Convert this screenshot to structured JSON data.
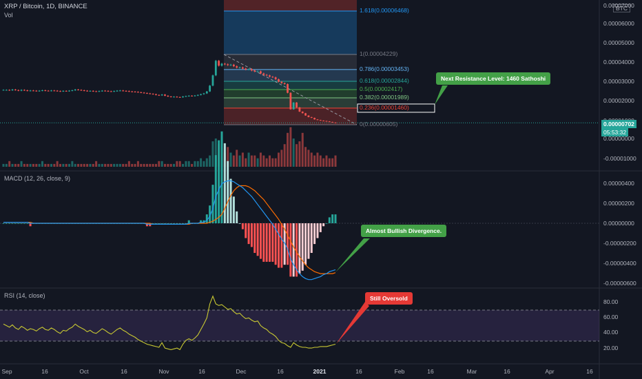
{
  "header": {
    "title": "XRP / Bitcoin, 1D, BINANCE",
    "vol": "Vol"
  },
  "price_axis": {
    "currency": "BTC",
    "labels": [
      "0.00007000",
      "0.00006000",
      "0.00005000",
      "0.00004000",
      "0.00003000",
      "0.00002000",
      "0.00001000",
      "0.00000000",
      "-0.00001000"
    ],
    "last_price": "0.00000702",
    "countdown": "05:53:32"
  },
  "fib": {
    "levels": [
      {
        "label": "1.618(0.00006468)",
        "color": "#2196f3"
      },
      {
        "label": "1(0.00004229)",
        "color": "#787b86"
      },
      {
        "label": "0.786(0.00003453)",
        "color": "#64b5f6"
      },
      {
        "label": "0.618(0.00002844)",
        "color": "#26a69a"
      },
      {
        "label": "0.5(0.00002417)",
        "color": "#4caf50"
      },
      {
        "label": "0.382(0.00001989)",
        "color": "#81c784"
      },
      {
        "label": "0.236(0.00001460)",
        "color": "#f44336"
      },
      {
        "label": "0(0.00000605)",
        "color": "#787b86"
      }
    ]
  },
  "macd": {
    "title": "MACD (12, 26, close, 9)",
    "labels": [
      "0.00000400",
      "0.00000200",
      "0.00000000",
      "-0.00000200",
      "-0.00000400",
      "-0.00000600"
    ]
  },
  "rsi": {
    "title": "RSI (14, close)",
    "labels": [
      "80.00",
      "60.00",
      "40.00",
      "20.00"
    ]
  },
  "time_axis": [
    {
      "t": "Sep",
      "bold": false
    },
    {
      "t": "16",
      "bold": false
    },
    {
      "t": "Oct",
      "bold": false
    },
    {
      "t": "16",
      "bold": false
    },
    {
      "t": "Nov",
      "bold": false
    },
    {
      "t": "16",
      "bold": false
    },
    {
      "t": "Dec",
      "bold": false
    },
    {
      "t": "16",
      "bold": false
    },
    {
      "t": "2021",
      "bold": true
    },
    {
      "t": "16",
      "bold": false
    },
    {
      "t": "Feb",
      "bold": false
    },
    {
      "t": "16",
      "bold": false
    },
    {
      "t": "Mar",
      "bold": false
    },
    {
      "t": "16",
      "bold": false
    },
    {
      "t": "Apr",
      "bold": false
    },
    {
      "t": "16",
      "bold": false
    }
  ],
  "callouts": {
    "resistance": "Next Resistance Level: 1460 Sathoshi",
    "divergence": "Almost Bullish Divergence.",
    "oversold": "Still Oversold"
  },
  "colors": {
    "up": "#26a69a",
    "down": "#ef5350",
    "macd_line": "#2196f3",
    "signal_line": "#ff6d00",
    "rsi_line": "#c9c932"
  },
  "chart_data": [
    {
      "type": "candlestick",
      "title": "XRP / Bitcoin, 1D, BINANCE",
      "ylim": [
        -1.2e-05,
        7e-05
      ],
      "close": [
        2.4e-05,
        2.4e-05,
        2.38e-05,
        2.42e-05,
        2.39e-05,
        2.36e-05,
        2.4e-05,
        2.38e-05,
        2.35e-05,
        2.37e-05,
        2.36e-05,
        2.34e-05,
        2.36e-05,
        2.38e-05,
        2.36e-05,
        2.35e-05,
        2.37e-05,
        2.36e-05,
        2.34e-05,
        2.33e-05,
        2.35e-05,
        2.34e-05,
        2.36e-05,
        2.38e-05,
        2.42e-05,
        2.4e-05,
        2.38e-05,
        2.36e-05,
        2.34e-05,
        2.35e-05,
        2.33e-05,
        2.32e-05,
        2.34e-05,
        2.36e-05,
        2.35e-05,
        2.33e-05,
        2.32e-05,
        2.34e-05,
        2.36e-05,
        2.37e-05,
        2.35e-05,
        2.34e-05,
        2.32e-05,
        2.31e-05,
        2.3e-05,
        2.28e-05,
        2.26e-05,
        2.24e-05,
        2.22e-05,
        2.2e-05,
        2.18e-05,
        2.14e-05,
        2.12e-05,
        2.16e-05,
        2.1e-05,
        2.06e-05,
        2.04e-05,
        2.05e-05,
        2.03e-05,
        2.02e-05,
        2.06e-05,
        2.08e-05,
        2.1e-05,
        2.09e-05,
        2.11e-05,
        2.14e-05,
        2.18e-05,
        2.22e-05,
        2.32e-05,
        2.62e-05,
        3.15e-05,
        3.9e-05,
        3.65e-05,
        3.75e-05,
        3.72e-05,
        3.68e-05,
        3.7e-05,
        3.62e-05,
        3.55e-05,
        3.56e-05,
        3.5e-05,
        3.45e-05,
        3.47e-05,
        3.4e-05,
        3.35e-05,
        3.36e-05,
        3.25e-05,
        3.18e-05,
        3.15e-05,
        3.08e-05,
        3.05e-05,
        2.95e-05,
        2.82e-05,
        2.75e-05,
        2.7e-05,
        2.25e-05,
        1.4e-05,
        1.75e-05,
        1.5e-05,
        1.28e-05,
        1.2e-05,
        1.08e-05,
        1e-05,
        9.6e-06,
        8.8e-06,
        8.5e-06,
        8.2e-06,
        8e-06,
        7.8e-06,
        7.5e-06,
        7.2e-06,
        7.02e-06
      ]
    },
    {
      "type": "bar",
      "title": "Vol",
      "values": [
        1,
        1,
        2,
        1,
        1,
        1,
        2,
        1,
        1,
        1,
        1,
        1,
        1,
        2,
        1,
        1,
        1,
        1,
        2,
        1,
        1,
        1,
        1,
        2,
        1,
        1,
        1,
        1,
        1,
        1,
        1,
        2,
        1,
        1,
        1,
        1,
        1,
        1,
        1,
        1,
        1,
        1,
        2,
        1,
        1,
        2,
        1,
        1,
        1,
        1,
        1,
        1,
        2,
        2,
        1,
        1,
        1,
        1,
        2,
        2,
        1,
        2,
        2,
        1,
        2,
        2,
        3,
        2,
        3,
        4,
        9,
        10,
        8,
        6,
        5,
        7,
        5,
        4,
        6,
        4,
        5,
        3,
        5,
        4,
        4,
        3,
        5,
        4,
        3,
        4,
        3,
        3,
        5,
        6,
        8,
        12,
        14,
        10,
        8,
        9,
        12,
        7,
        6,
        5,
        4,
        5,
        4,
        3,
        4,
        3,
        3,
        4
      ]
    },
    {
      "type": "line",
      "title": "MACD (12, 26, close, 9)",
      "ylim": [
        -6.2e-06,
        4.6e-06
      ],
      "series": [
        {
          "name": "MACD",
          "color": "#2196f3"
        },
        {
          "name": "Signal",
          "color": "#ff6d00"
        }
      ],
      "macd": [
        1e-07,
        1e-07,
        1e-07,
        1e-07,
        1e-07,
        1e-07,
        1e-07,
        1e-07,
        1e-07,
        0,
        0,
        0,
        0,
        0,
        0,
        0,
        0,
        0,
        0,
        0,
        0,
        0,
        0,
        0,
        0,
        0,
        0,
        0,
        0,
        0,
        0,
        0,
        0,
        0,
        0,
        0,
        0,
        0,
        0,
        0,
        0,
        0,
        0,
        0,
        0,
        0,
        0,
        0,
        -1e-07,
        -1e-07,
        -1e-07,
        -1e-07,
        -1e-07,
        -1e-07,
        -1e-07,
        -1e-07,
        -1e-07,
        -1e-07,
        -1e-07,
        -1e-07,
        -1e-07,
        -1e-07,
        0,
        0,
        0,
        0,
        1e-07,
        1e-07,
        3e-07,
        7e-07,
        1.5e-06,
        2.7e-06,
        3.4e-06,
        4e-06,
        4.2e-06,
        4.3e-06,
        4.3e-06,
        4.2e-06,
        4e-06,
        3.8e-06,
        3.6e-06,
        3.3e-06,
        3e-06,
        2.7e-06,
        2.3e-06,
        1.9e-06,
        1.5e-06,
        1.1e-06,
        7e-07,
        3e-07,
        -1e-07,
        -6e-07,
        -1.1e-06,
        -1.6e-06,
        -2e-06,
        -2.6e-06,
        -3.6e-06,
        -4.2e-06,
        -4.7e-06,
        -5.1e-06,
        -5.4e-06,
        -5.6e-06,
        -5.7e-06,
        -5.7e-06,
        -5.6e-06,
        -5.5e-06,
        -5.4e-06,
        -5.2e-06,
        -5.1e-06,
        -4.9e-06,
        -4.8e-06,
        -4.7e-06
      ],
      "signal": [
        1e-07,
        1e-07,
        1e-07,
        1e-07,
        1e-07,
        1e-07,
        1e-07,
        1e-07,
        1e-07,
        1e-07,
        0,
        0,
        0,
        0,
        0,
        0,
        0,
        0,
        0,
        0,
        0,
        0,
        0,
        0,
        0,
        0,
        0,
        0,
        0,
        0,
        0,
        0,
        0,
        0,
        0,
        0,
        0,
        0,
        0,
        0,
        0,
        0,
        0,
        0,
        0,
        0,
        0,
        0,
        0,
        0,
        -1e-07,
        -1e-07,
        -1e-07,
        -1e-07,
        -1e-07,
        -1e-07,
        -1e-07,
        -1e-07,
        -1e-07,
        -1e-07,
        -1e-07,
        -1e-07,
        -1e-07,
        0,
        0,
        0,
        0,
        0,
        0,
        1e-07,
        2e-07,
        4e-07,
        6e-07,
        9e-07,
        1.5e-06,
        2.2e-06,
        2.8e-06,
        3.3e-06,
        3.6e-06,
        3.8e-06,
        3.8e-06,
        3.8e-06,
        3.7e-06,
        3.5e-06,
        3.3e-06,
        3e-06,
        2.7e-06,
        2.4e-06,
        2e-06,
        1.6e-06,
        1.2e-06,
        8e-07,
        4e-07,
        -1e-07,
        -6e-07,
        -1.2e-06,
        -1.8e-06,
        -2.4e-06,
        -2.9e-06,
        -3.4e-06,
        -3.8e-06,
        -4.2e-06,
        -4.5e-06,
        -4.7e-06,
        -4.9e-06,
        -5e-06,
        -5.1e-06,
        -5.1e-06,
        -5.1e-06,
        -5.1e-06,
        -5.1e-06,
        -5e-06
      ]
    },
    {
      "type": "line",
      "title": "RSI (14, close)",
      "ylim": [
        8,
        96
      ],
      "values": [
        52,
        50,
        48,
        51,
        47,
        45,
        49,
        47,
        44,
        46,
        45,
        43,
        46,
        48,
        45,
        44,
        47,
        45,
        42,
        40,
        44,
        43,
        46,
        48,
        52,
        49,
        47,
        45,
        42,
        44,
        41,
        40,
        43,
        46,
        44,
        41,
        39,
        42,
        45,
        47,
        44,
        42,
        39,
        37,
        35,
        32,
        30,
        28,
        26,
        25,
        24,
        23,
        22,
        28,
        21,
        20,
        19,
        20,
        21,
        19,
        26,
        31,
        33,
        31,
        34,
        38,
        45,
        52,
        60,
        78,
        88,
        78,
        76,
        77,
        74,
        71,
        72,
        68,
        65,
        66,
        62,
        59,
        60,
        57,
        55,
        56,
        50,
        47,
        45,
        41,
        39,
        36,
        31,
        28,
        27,
        24,
        22,
        28,
        25,
        23,
        22,
        22,
        21,
        21,
        22,
        22,
        23,
        23,
        23,
        24,
        25,
        26
      ]
    }
  ]
}
